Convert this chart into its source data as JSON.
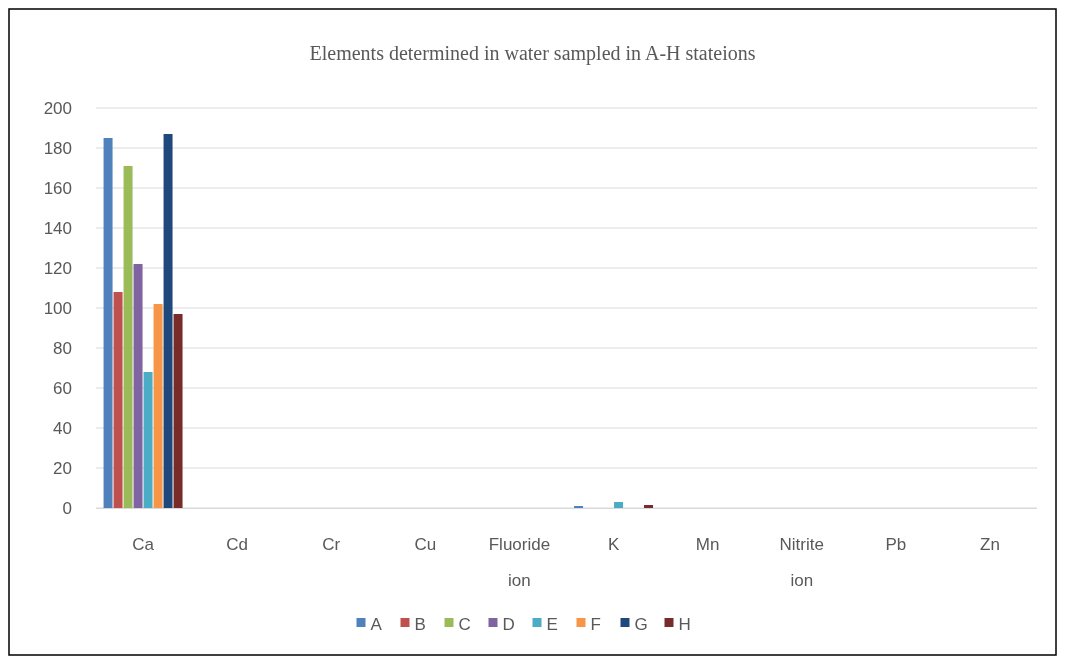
{
  "chart_data": {
    "type": "bar",
    "title": "Elements  determined in water sampled in A-H stateions",
    "categories": [
      "Ca",
      "Cd",
      "Cr",
      "Cu",
      "Fluoride ion",
      "K",
      "Mn",
      "Nitrite ion",
      "Pb",
      "Zn"
    ],
    "series": [
      {
        "name": "A",
        "color": "#4f81bd",
        "values": [
          185,
          0,
          0,
          0,
          0,
          1,
          0,
          0,
          0,
          0
        ]
      },
      {
        "name": "B",
        "color": "#c0504d",
        "values": [
          108,
          0,
          0,
          0,
          0,
          0,
          0,
          0,
          0,
          0
        ]
      },
      {
        "name": "C",
        "color": "#9bbb59",
        "values": [
          171,
          0,
          0,
          0,
          0,
          0,
          0,
          0,
          0,
          0
        ]
      },
      {
        "name": "D",
        "color": "#8064a2",
        "values": [
          122,
          0,
          0,
          0,
          0,
          0,
          0,
          0,
          0,
          0
        ]
      },
      {
        "name": "E",
        "color": "#4bacc6",
        "values": [
          68,
          0,
          0,
          0,
          0,
          3,
          0,
          0,
          0,
          0
        ]
      },
      {
        "name": "F",
        "color": "#f79646",
        "values": [
          102,
          0,
          0,
          0,
          0,
          0,
          0,
          0,
          0,
          0
        ]
      },
      {
        "name": "G",
        "color": "#1f497d",
        "values": [
          187,
          0,
          0,
          0,
          0,
          0,
          0,
          0,
          0,
          0
        ]
      },
      {
        "name": "H",
        "color": "#772c2a",
        "values": [
          97,
          0,
          0,
          0,
          0,
          1.5,
          0,
          0,
          0,
          0
        ]
      }
    ],
    "ylim": [
      0,
      200
    ],
    "yticks": [
      0,
      20,
      40,
      60,
      80,
      100,
      120,
      140,
      160,
      180,
      200
    ],
    "grid": "y",
    "legend": "bottom"
  }
}
